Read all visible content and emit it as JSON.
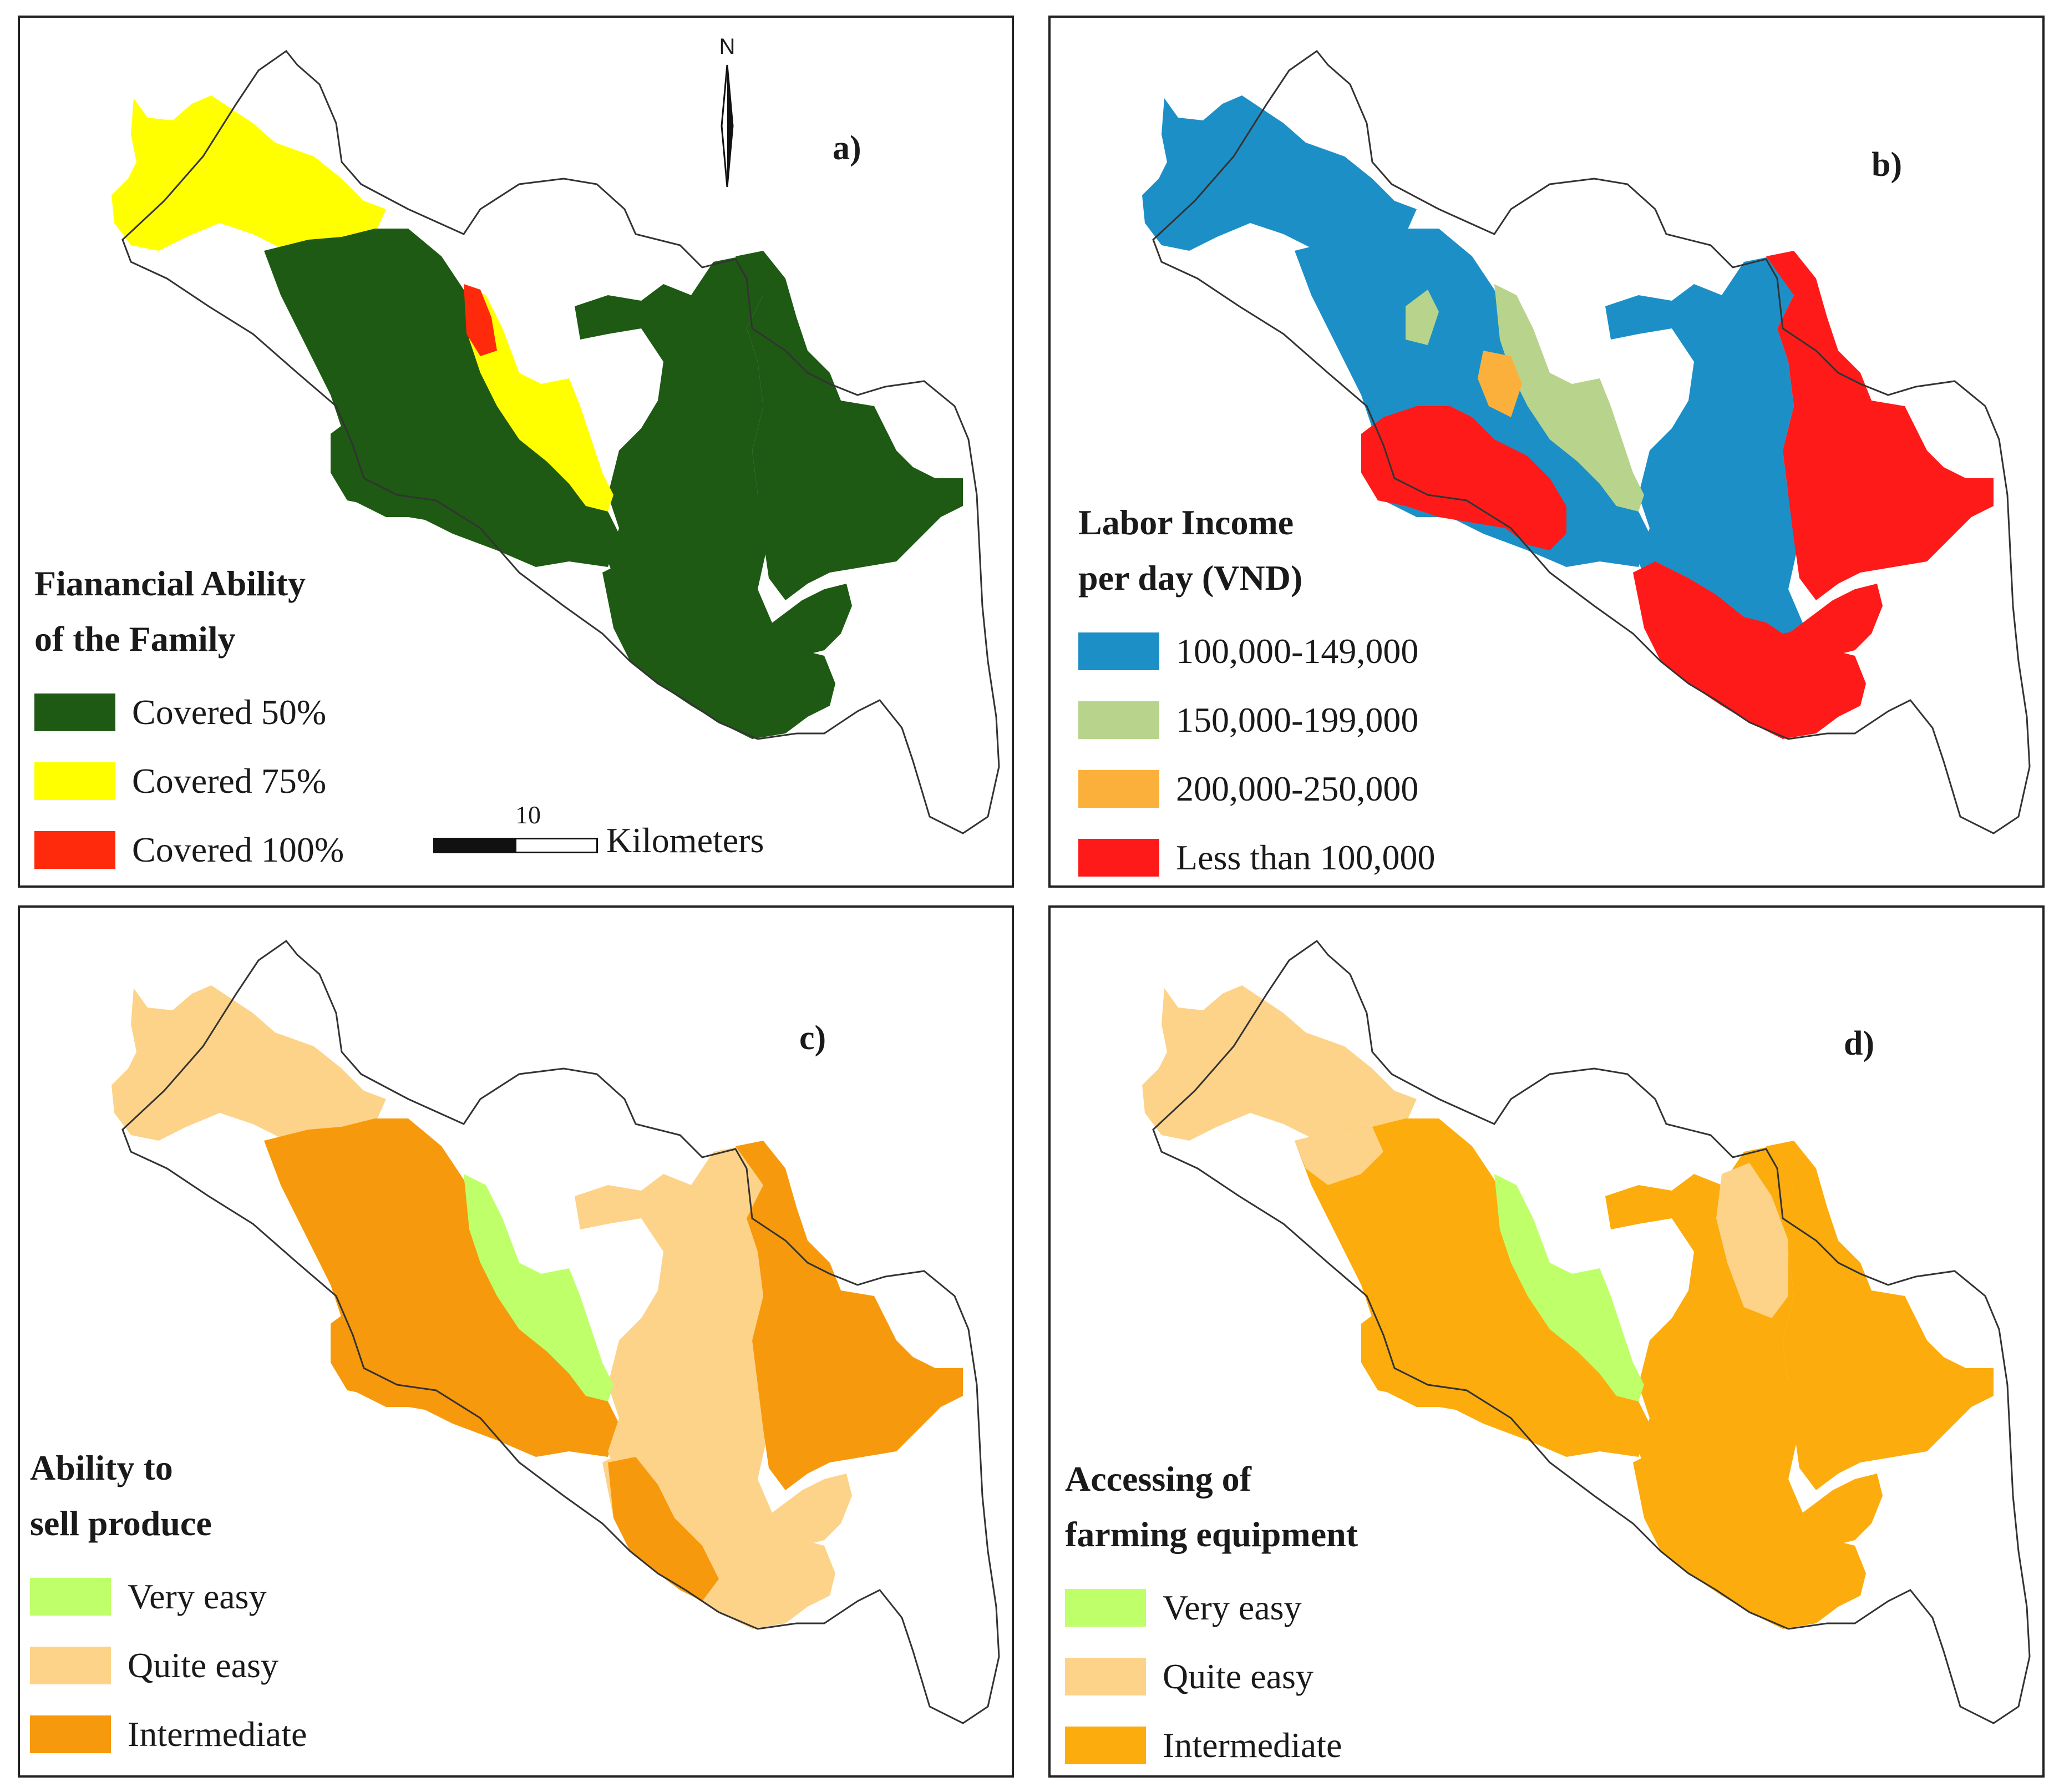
{
  "panels": {
    "a": {
      "label": "a)",
      "legend_title_line1": "Fianancial Ability",
      "legend_title_line2": "of the Family",
      "legend": [
        {
          "label": "Covered 50%",
          "color": "#1e5a14"
        },
        {
          "label": "Covered 75%",
          "color": "#ffff00"
        },
        {
          "label": "Covered 100%",
          "color": "#ff2a0c"
        }
      ],
      "north_label": "N",
      "scale_number": "10",
      "scale_unit": "Kilometers"
    },
    "b": {
      "label": "b)",
      "legend_title_line1": "Labor Income",
      "legend_title_line2": "per day (VND)",
      "legend": [
        {
          "label": "100,000-149,000",
          "color": "#1d8fc7"
        },
        {
          "label": "150,000-199,000",
          "color": "#b8d48c"
        },
        {
          "label": "200,000-250,000",
          "color": "#fbb03b"
        },
        {
          "label": "Less than 100,000",
          "color": "#ff1a1a"
        }
      ]
    },
    "c": {
      "label": "c)",
      "legend_title_line1": "Ability to",
      "legend_title_line2": "sell produce",
      "legend": [
        {
          "label": "Very easy",
          "color": "#bfff6a"
        },
        {
          "label": "Quite easy",
          "color": "#fdd38a"
        },
        {
          "label": "Intermediate",
          "color": "#f7990c"
        }
      ]
    },
    "d": {
      "label": "d)",
      "legend_title_line1": "Accessing of",
      "legend_title_line2": "farming equipment",
      "legend": [
        {
          "label": "Very easy",
          "color": "#bfff6a"
        },
        {
          "label": "Quite easy",
          "color": "#fdd38a"
        },
        {
          "label": "Intermediate",
          "color": "#fcac0c"
        }
      ]
    }
  }
}
